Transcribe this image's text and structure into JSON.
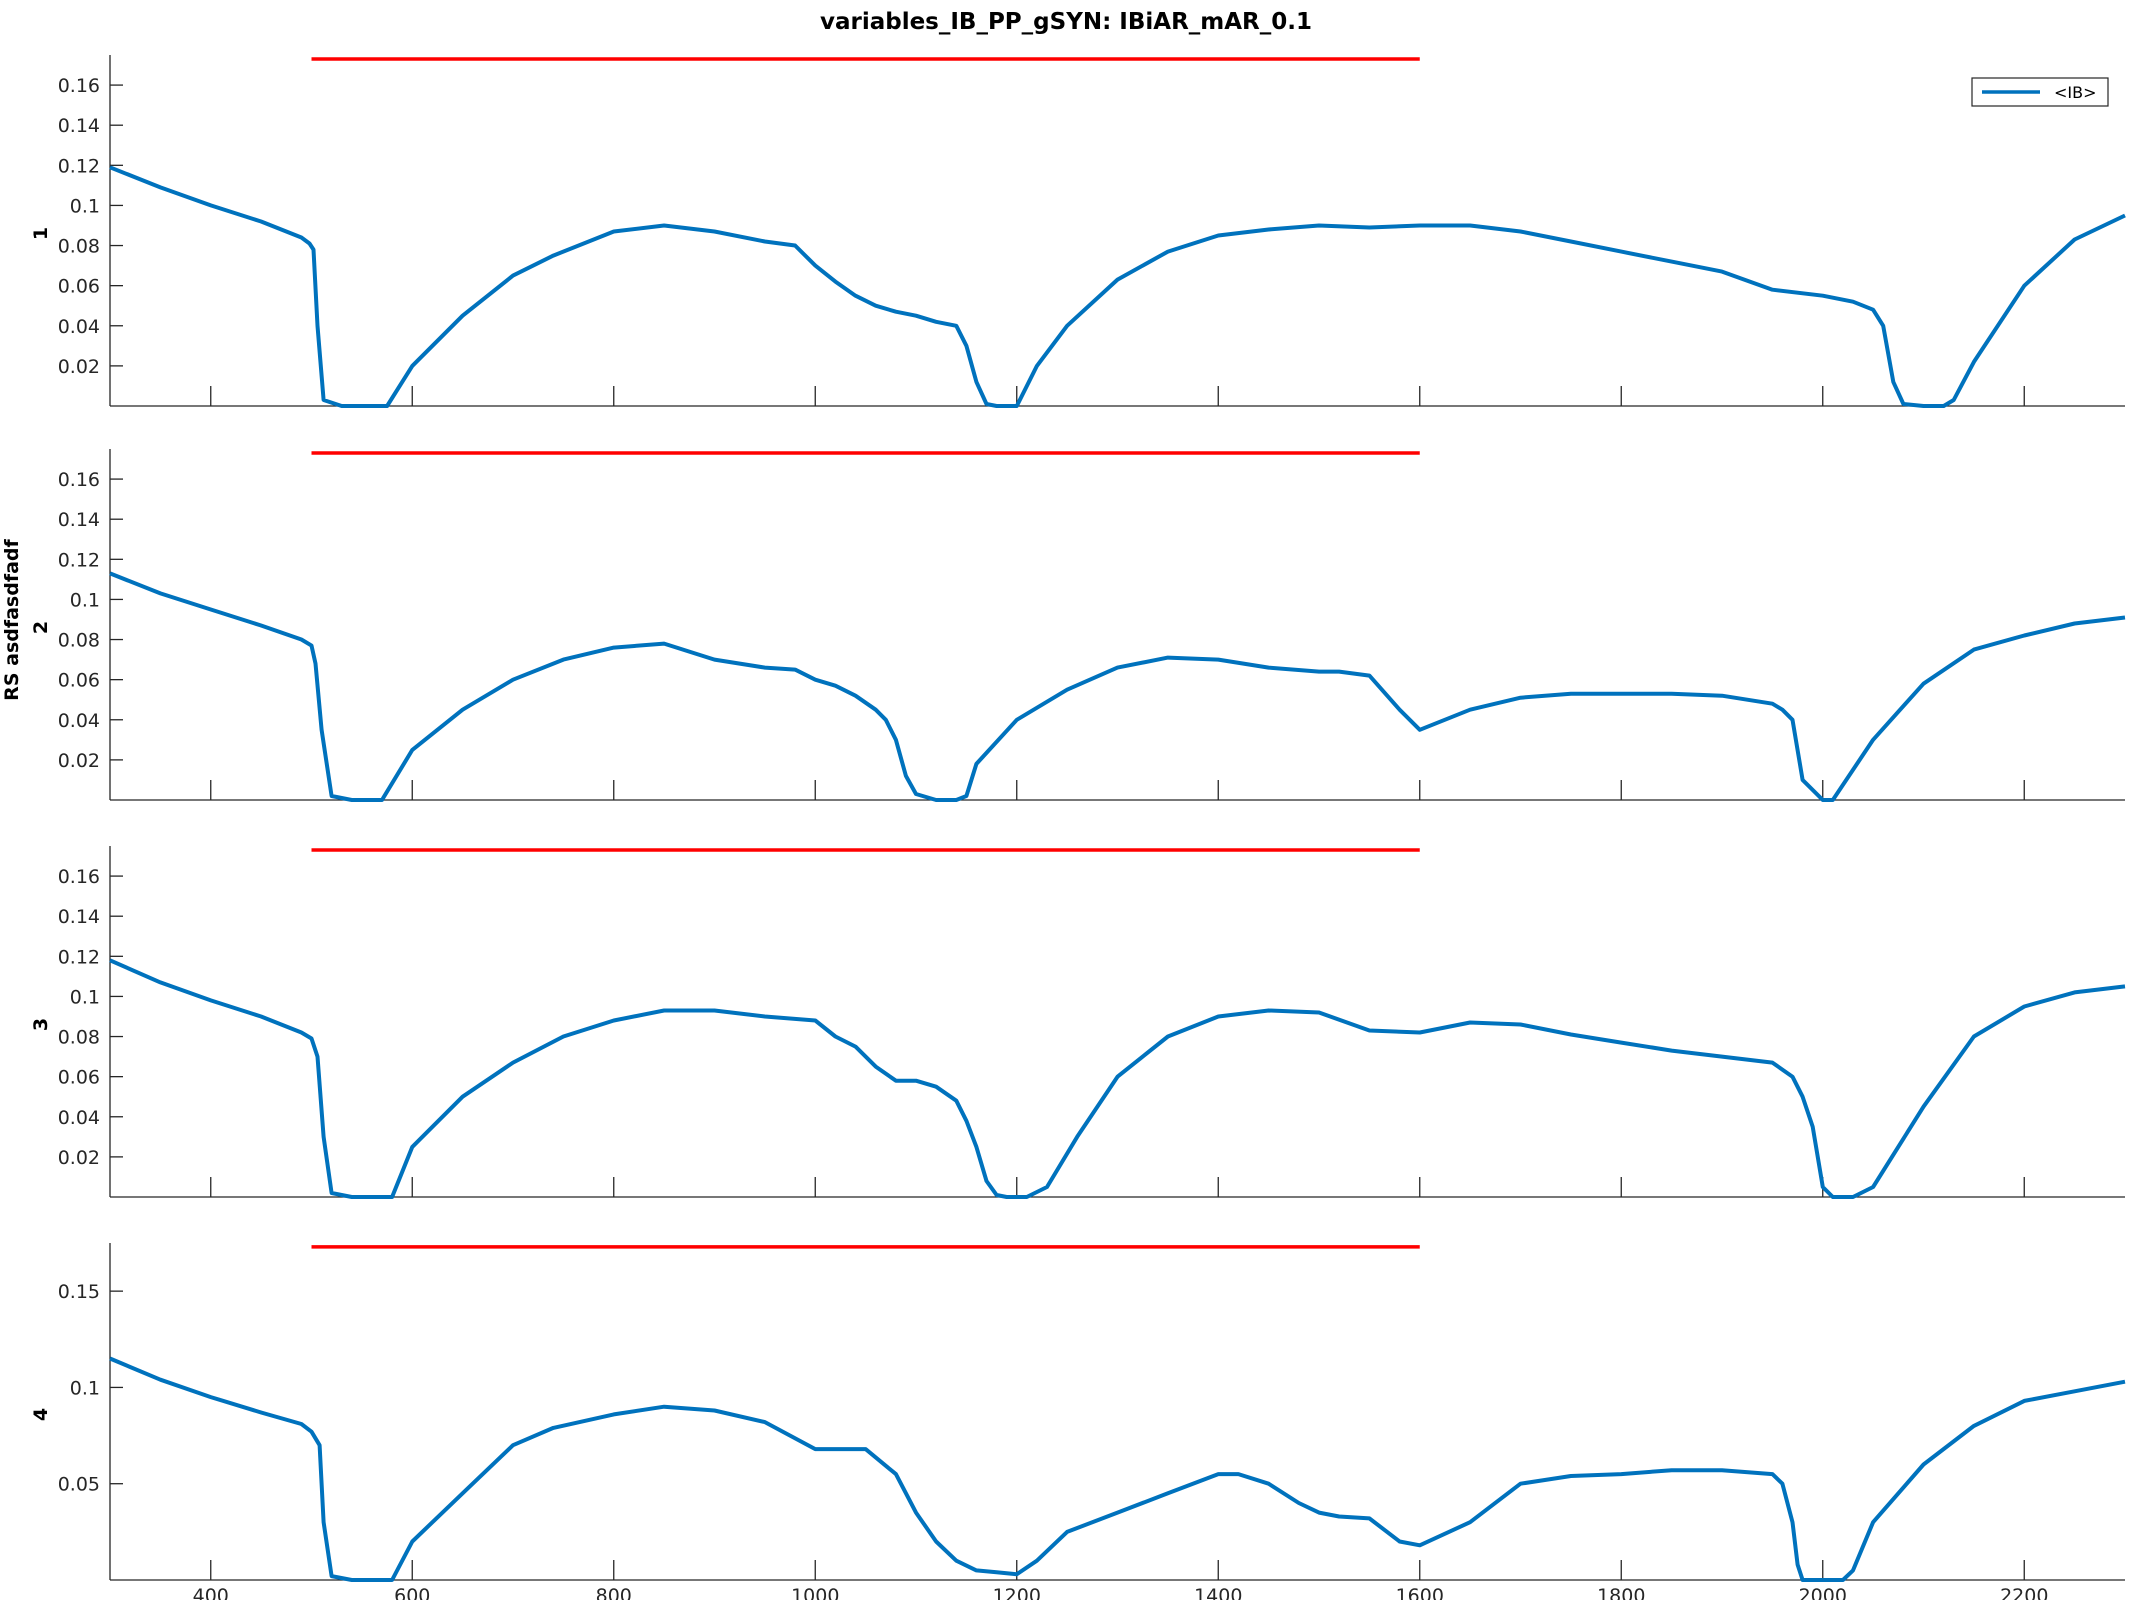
{
  "figure": {
    "title": "variables_IB_PP_gSYN: IBiAR_mAR_0.1",
    "shared_ylabel": "RS asdfasdfadf",
    "legend_label": "<IB>"
  },
  "colors": {
    "series": "#0072BD",
    "marker": "#FF0000",
    "axis": "#262626"
  },
  "chart_data": [
    {
      "type": "line",
      "panel_label": "1",
      "xlim": [
        300,
        2300
      ],
      "ylim": [
        0,
        0.175
      ],
      "yticks": [
        0.02,
        0.04,
        0.06,
        0.08,
        0.1,
        0.12,
        0.14,
        0.16
      ],
      "ytick_labels": [
        "0.02",
        "0.04",
        "0.06",
        "0.08",
        "0.1",
        "0.12",
        "0.14",
        "0.16"
      ],
      "xticks": [
        400,
        600,
        800,
        1000,
        1200,
        1400,
        1600,
        1800,
        2000,
        2200
      ],
      "marker_line": {
        "x": [
          500,
          1600
        ],
        "y": 0.173
      },
      "series": [
        {
          "name": "<IB>",
          "x": [
            300,
            350,
            400,
            450,
            490,
            498,
            502,
            506,
            512,
            530,
            560,
            575,
            600,
            650,
            700,
            740,
            800,
            850,
            900,
            950,
            980,
            1000,
            1020,
            1040,
            1060,
            1080,
            1100,
            1120,
            1140,
            1150,
            1160,
            1170,
            1180,
            1200,
            1220,
            1250,
            1300,
            1350,
            1400,
            1450,
            1500,
            1550,
            1600,
            1650,
            1700,
            1750,
            1800,
            1850,
            1900,
            1950,
            2000,
            2030,
            2050,
            2060,
            2070,
            2080,
            2100,
            2120,
            2130,
            2150,
            2200,
            2250,
            2300
          ],
          "y": [
            0.119,
            0.109,
            0.1,
            0.092,
            0.084,
            0.081,
            0.078,
            0.04,
            0.003,
            0.0,
            0.0,
            0.0,
            0.02,
            0.045,
            0.065,
            0.075,
            0.087,
            0.09,
            0.087,
            0.082,
            0.08,
            0.07,
            0.062,
            0.055,
            0.05,
            0.047,
            0.045,
            0.042,
            0.04,
            0.03,
            0.012,
            0.001,
            0.0,
            0.0,
            0.02,
            0.04,
            0.063,
            0.077,
            0.085,
            0.088,
            0.09,
            0.089,
            0.09,
            0.09,
            0.087,
            0.082,
            0.077,
            0.072,
            0.067,
            0.058,
            0.055,
            0.052,
            0.048,
            0.04,
            0.012,
            0.001,
            0.0,
            0.0,
            0.003,
            0.022,
            0.06,
            0.083,
            0.095
          ]
        }
      ]
    },
    {
      "type": "line",
      "panel_label": "2",
      "xlim": [
        300,
        2300
      ],
      "ylim": [
        0,
        0.175
      ],
      "yticks": [
        0.02,
        0.04,
        0.06,
        0.08,
        0.1,
        0.12,
        0.14,
        0.16
      ],
      "ytick_labels": [
        "0.02",
        "0.04",
        "0.06",
        "0.08",
        "0.1",
        "0.12",
        "0.14",
        "0.16"
      ],
      "xticks": [
        400,
        600,
        800,
        1000,
        1200,
        1400,
        1600,
        1800,
        2000,
        2200
      ],
      "marker_line": {
        "x": [
          500,
          1600
        ],
        "y": 0.173
      },
      "series": [
        {
          "name": "<IB>",
          "x": [
            300,
            350,
            400,
            450,
            490,
            500,
            504,
            510,
            520,
            540,
            560,
            570,
            600,
            650,
            700,
            750,
            800,
            850,
            900,
            950,
            980,
            1000,
            1020,
            1040,
            1060,
            1070,
            1080,
            1090,
            1100,
            1120,
            1140,
            1150,
            1160,
            1200,
            1250,
            1300,
            1350,
            1400,
            1450,
            1500,
            1520,
            1550,
            1580,
            1600,
            1650,
            1700,
            1750,
            1800,
            1850,
            1900,
            1950,
            1960,
            1970,
            1980,
            2000,
            2010,
            2050,
            2100,
            2150,
            2200,
            2250,
            2300
          ],
          "y": [
            0.113,
            0.103,
            0.095,
            0.087,
            0.08,
            0.077,
            0.068,
            0.035,
            0.002,
            0.0,
            0.0,
            0.0,
            0.025,
            0.045,
            0.06,
            0.07,
            0.076,
            0.078,
            0.07,
            0.066,
            0.065,
            0.06,
            0.057,
            0.052,
            0.045,
            0.04,
            0.03,
            0.012,
            0.003,
            0.0,
            0.0,
            0.002,
            0.018,
            0.04,
            0.055,
            0.066,
            0.071,
            0.07,
            0.066,
            0.064,
            0.064,
            0.062,
            0.045,
            0.035,
            0.045,
            0.051,
            0.053,
            0.053,
            0.053,
            0.052,
            0.048,
            0.045,
            0.04,
            0.01,
            0.0,
            0.0,
            0.03,
            0.058,
            0.075,
            0.082,
            0.088,
            0.091
          ]
        }
      ]
    },
    {
      "type": "line",
      "panel_label": "3",
      "xlim": [
        300,
        2300
      ],
      "ylim": [
        0,
        0.175
      ],
      "yticks": [
        0.02,
        0.04,
        0.06,
        0.08,
        0.1,
        0.12,
        0.14,
        0.16
      ],
      "ytick_labels": [
        "0.02",
        "0.04",
        "0.06",
        "0.08",
        "0.1",
        "0.12",
        "0.14",
        "0.16"
      ],
      "xticks": [
        400,
        600,
        800,
        1000,
        1200,
        1400,
        1600,
        1800,
        2000,
        2200
      ],
      "marker_line": {
        "x": [
          500,
          1600
        ],
        "y": 0.173
      },
      "series": [
        {
          "name": "<IB>",
          "x": [
            300,
            350,
            400,
            450,
            490,
            500,
            506,
            512,
            520,
            540,
            560,
            580,
            600,
            650,
            700,
            750,
            800,
            850,
            900,
            950,
            1000,
            1020,
            1040,
            1060,
            1080,
            1100,
            1120,
            1140,
            1150,
            1160,
            1170,
            1180,
            1190,
            1210,
            1230,
            1260,
            1300,
            1350,
            1400,
            1450,
            1500,
            1550,
            1600,
            1650,
            1700,
            1750,
            1800,
            1850,
            1900,
            1950,
            1970,
            1980,
            1990,
            2000,
            2010,
            2030,
            2050,
            2100,
            2150,
            2200,
            2250,
            2300
          ],
          "y": [
            0.118,
            0.107,
            0.098,
            0.09,
            0.082,
            0.079,
            0.07,
            0.03,
            0.002,
            0.0,
            0.0,
            0.0,
            0.025,
            0.05,
            0.067,
            0.08,
            0.088,
            0.093,
            0.093,
            0.09,
            0.088,
            0.08,
            0.075,
            0.065,
            0.058,
            0.058,
            0.055,
            0.048,
            0.038,
            0.025,
            0.008,
            0.001,
            0.0,
            0.0,
            0.005,
            0.03,
            0.06,
            0.08,
            0.09,
            0.093,
            0.092,
            0.083,
            0.082,
            0.087,
            0.086,
            0.081,
            0.077,
            0.073,
            0.07,
            0.067,
            0.06,
            0.05,
            0.035,
            0.005,
            0.0,
            0.0,
            0.005,
            0.045,
            0.08,
            0.095,
            0.102,
            0.105
          ]
        }
      ]
    },
    {
      "type": "line",
      "panel_label": "4",
      "xlim": [
        300,
        2300
      ],
      "ylim": [
        0,
        0.175
      ],
      "yticks": [
        0.05,
        0.1,
        0.15
      ],
      "ytick_labels": [
        "0.05",
        "0.1",
        "0.15"
      ],
      "xticks": [
        400,
        600,
        800,
        1000,
        1200,
        1400,
        1600,
        1800,
        2000,
        2200
      ],
      "xtick_labels": [
        "400",
        "600",
        "800",
        "1000",
        "1200",
        "1400",
        "1600",
        "1800",
        "2000",
        "2200"
      ],
      "marker_line": {
        "x": [
          500,
          1600
        ],
        "y": 0.173
      },
      "series": [
        {
          "name": "<IB>",
          "x": [
            300,
            350,
            400,
            450,
            490,
            500,
            508,
            512,
            520,
            540,
            560,
            580,
            600,
            650,
            700,
            740,
            800,
            850,
            900,
            950,
            1000,
            1050,
            1080,
            1100,
            1120,
            1140,
            1160,
            1180,
            1200,
            1220,
            1250,
            1300,
            1350,
            1400,
            1420,
            1450,
            1480,
            1500,
            1520,
            1550,
            1580,
            1600,
            1650,
            1700,
            1750,
            1800,
            1850,
            1900,
            1950,
            1960,
            1970,
            1975,
            1980,
            2000,
            2020,
            2030,
            2050,
            2100,
            2150,
            2200,
            2250,
            2300
          ],
          "y": [
            0.115,
            0.104,
            0.095,
            0.087,
            0.081,
            0.077,
            0.07,
            0.03,
            0.002,
            0.0,
            0.0,
            0.0,
            0.02,
            0.045,
            0.07,
            0.079,
            0.086,
            0.09,
            0.088,
            0.082,
            0.068,
            0.068,
            0.055,
            0.035,
            0.02,
            0.01,
            0.005,
            0.004,
            0.003,
            0.01,
            0.025,
            0.035,
            0.045,
            0.055,
            0.055,
            0.05,
            0.04,
            0.035,
            0.033,
            0.032,
            0.02,
            0.018,
            0.03,
            0.05,
            0.054,
            0.055,
            0.057,
            0.057,
            0.055,
            0.05,
            0.03,
            0.008,
            0.0,
            0.0,
            0.0,
            0.005,
            0.03,
            0.06,
            0.08,
            0.093,
            0.098,
            0.103
          ]
        }
      ]
    }
  ]
}
